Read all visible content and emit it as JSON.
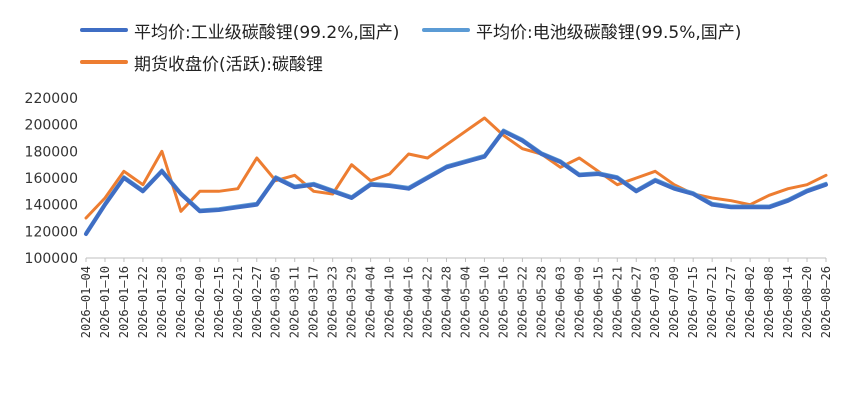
{
  "chart_data": {
    "type": "line",
    "title": "",
    "xlabel": "",
    "ylabel": "",
    "ylim": [
      100000,
      220000
    ],
    "yticks": [
      100000,
      120000,
      140000,
      160000,
      180000,
      200000,
      220000
    ],
    "legend_position": "top",
    "grid": false,
    "x": [
      "2026-01-04",
      "2026-01-10",
      "2026-01-16",
      "2026-01-22",
      "2026-01-28",
      "2026-02-03",
      "2026-02-09",
      "2026-02-15",
      "2026-02-21",
      "2026-02-27",
      "2026-03-05",
      "2026-03-11",
      "2026-03-17",
      "2026-03-23",
      "2026-03-29",
      "2026-04-04",
      "2026-04-10",
      "2026-04-16",
      "2026-04-22",
      "2026-04-28",
      "2026-05-04",
      "2026-05-10",
      "2026-05-16",
      "2026-05-22",
      "2026-05-28",
      "2026-06-03",
      "2026-06-09",
      "2026-06-15",
      "2026-06-21",
      "2026-06-27",
      "2026-07-03",
      "2026-07-09",
      "2026-07-15",
      "2026-07-21",
      "2026-07-27",
      "2026-08-02",
      "2026-08-08",
      "2026-08-14",
      "2026-08-20",
      "2026-08-26"
    ],
    "series": [
      {
        "name": "平均价:工业级碳酸锂(99.2%,国产)",
        "color": "#3F6EC4",
        "values": [
          118000,
          140000,
          160000,
          150000,
          165000,
          148000,
          135000,
          136000,
          138000,
          140000,
          160000,
          153000,
          155000,
          150000,
          145000,
          155000,
          154000,
          152000,
          160000,
          168000,
          172000,
          176000,
          195000,
          188000,
          178000,
          172000,
          162000,
          163000,
          160000,
          150000,
          158000,
          152000,
          148000,
          140000,
          138000,
          138000,
          138000,
          143000,
          150000,
          155000
        ]
      },
      {
        "name": "平均价:电池级碳酸锂(99.5%,国产)",
        "color": "#5B9BD5",
        "values": [
          119000,
          141000,
          161000,
          151000,
          166000,
          149000,
          136000,
          137000,
          139000,
          141000,
          161000,
          154000,
          156000,
          151000,
          146000,
          156000,
          155000,
          153000,
          161000,
          169000,
          173000,
          177000,
          196000,
          189000,
          179000,
          173000,
          163000,
          164000,
          161000,
          151000,
          159000,
          153000,
          149000,
          141000,
          139000,
          139000,
          139000,
          144000,
          151000,
          156000
        ]
      },
      {
        "name": "期货收盘价(活跃):碳酸锂",
        "color": "#ED7D31",
        "values": [
          130000,
          145000,
          165000,
          155000,
          180000,
          135000,
          150000,
          150000,
          152000,
          175000,
          158000,
          162000,
          150000,
          148000,
          170000,
          158000,
          163000,
          178000,
          175000,
          185000,
          195000,
          205000,
          192000,
          182000,
          178000,
          168000,
          175000,
          165000,
          155000,
          160000,
          165000,
          155000,
          148000,
          145000,
          143000,
          140000,
          147000,
          152000,
          155000,
          162000
        ]
      }
    ]
  }
}
